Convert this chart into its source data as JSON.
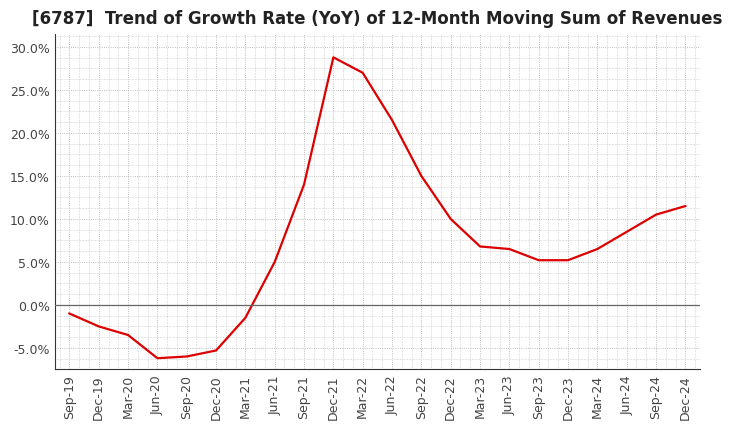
{
  "title": "[6787]  Trend of Growth Rate (YoY) of 12-Month Moving Sum of Revenues",
  "x_labels": [
    "Sep-19",
    "Dec-19",
    "Mar-20",
    "Jun-20",
    "Sep-20",
    "Dec-20",
    "Mar-21",
    "Jun-21",
    "Sep-21",
    "Dec-21",
    "Mar-22",
    "Jun-22",
    "Sep-22",
    "Dec-22",
    "Mar-23",
    "Jun-23",
    "Sep-23",
    "Dec-23",
    "Mar-24",
    "Jun-24",
    "Sep-24",
    "Dec-24"
  ],
  "y_values": [
    -1.0,
    -2.5,
    -3.5,
    -6.2,
    -6.0,
    -5.3,
    -1.5,
    5.0,
    14.0,
    28.8,
    27.0,
    21.5,
    15.0,
    10.0,
    6.8,
    6.5,
    5.2,
    5.2,
    6.5,
    8.5,
    10.5,
    11.5
  ],
  "line_color": "#dd0000",
  "background_color": "#ffffff",
  "plot_bg_color": "#ffffff",
  "grid_color": "#aaaaaa",
  "ylim": [
    -7.5,
    31.5
  ],
  "yticks": [
    -5.0,
    0.0,
    5.0,
    10.0,
    15.0,
    20.0,
    25.0,
    30.0
  ],
  "zero_line_color": "#666666",
  "title_fontsize": 12,
  "tick_fontsize": 9
}
